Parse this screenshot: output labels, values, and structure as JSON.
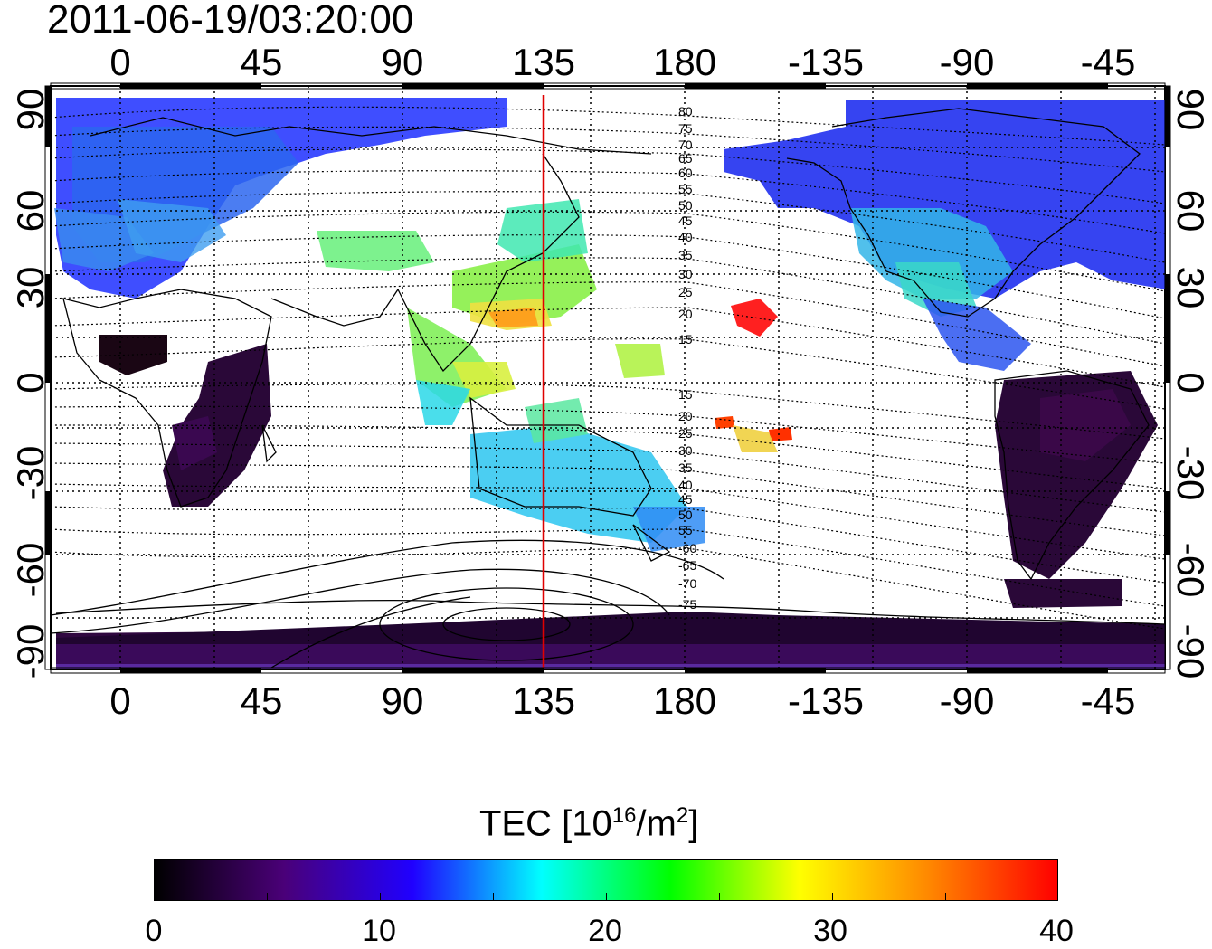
{
  "title": "2011-06-19/03:20:00",
  "map": {
    "lon_ticks_top": [
      "0",
      "45",
      "90",
      "135",
      "180",
      "-135",
      "-90",
      "-45"
    ],
    "lon_ticks_bottom": [
      "0",
      "45",
      "90",
      "135",
      "180",
      "-135",
      "-90",
      "-45"
    ],
    "lat_ticks_left": [
      "90",
      "60",
      "30",
      "0",
      "-30",
      "-60",
      "-90"
    ],
    "lat_ticks_right": [
      "90",
      "60",
      "30",
      "0",
      "-30",
      "-60",
      "-90"
    ],
    "marker_longitude": 135,
    "marker_color": "#e00000",
    "contour_labels_north": [
      "80",
      "75",
      "70",
      "65",
      "60",
      "55",
      "50",
      "45",
      "40",
      "35",
      "30",
      "25",
      "20",
      "15"
    ],
    "contour_labels_south": [
      "15",
      "20",
      "25",
      "30",
      "35",
      "40",
      "45",
      "50",
      "55",
      "-60",
      "-65",
      "-70",
      "-75"
    ]
  },
  "colorbar": {
    "title": "TEC  [10",
    "title_sup": "16",
    "title_unit": "/m",
    "title_sup2": "2",
    "title_end": "]",
    "ticks": [
      "0",
      "10",
      "20",
      "30",
      "40"
    ],
    "range": [
      0,
      40
    ],
    "colors": [
      "#000000",
      "#4a0078",
      "#2000ff",
      "#00ffff",
      "#00ff00",
      "#ffff00",
      "#ff8800",
      "#ff0000"
    ]
  }
}
